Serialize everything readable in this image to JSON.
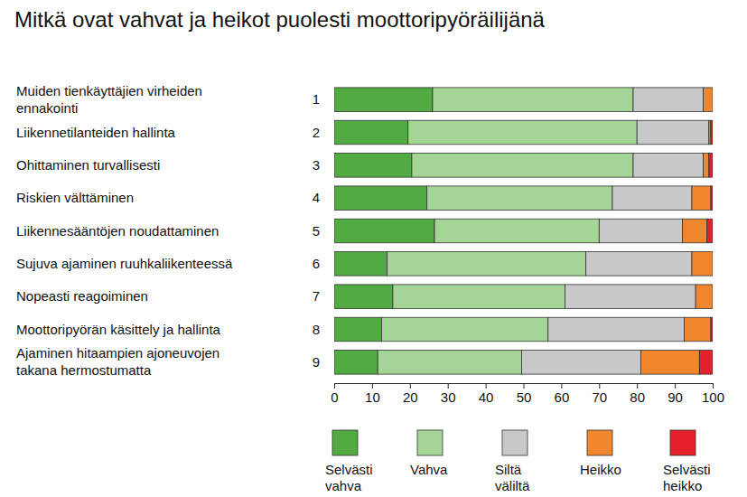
{
  "chart_data": {
    "type": "bar",
    "title": "Mitkä ovat vahvat ja heikot puolesti moottoripyöräilijänä",
    "orientation": "horizontal",
    "stacked": true,
    "grid": false,
    "legend": "bottom",
    "categories": [
      "Muiden tienkäyttäjien virheiden\nennakointi",
      "Liikennetilanteiden hallinta",
      "Ohittaminen turvallisesti",
      "Riskien välttäminen",
      "Liikennesääntöjen noudattaminen",
      "Sujuva ajaminen ruuhkaliikenteessä",
      "Nopeasti reagoiminen",
      "Moottoripyörän käsittely ja hallinta",
      "Ajaminen hitaampien ajoneuvojen\ntakana hermostumatta"
    ],
    "category_numbers": [
      1,
      2,
      3,
      4,
      5,
      6,
      7,
      8,
      9
    ],
    "series": [
      {
        "name": "Selvästi\nvahva",
        "color": "#52ab42",
        "values": [
          26,
          19.5,
          20.5,
          24.5,
          26.5,
          14,
          15.5,
          12.5,
          11.5
        ]
      },
      {
        "name": "Vahva",
        "color": "#a5d497",
        "values": [
          53,
          60.5,
          58.5,
          49,
          43.5,
          52.5,
          45.5,
          44,
          38
        ]
      },
      {
        "name": "Siltä\nväliltä",
        "color": "#c8c8cb",
        "values": [
          18.5,
          19,
          18.5,
          21,
          22,
          28,
          34.5,
          36,
          31.5
        ]
      },
      {
        "name": "Heikko",
        "color": "#f0862d",
        "values": [
          2.5,
          0.5,
          1.5,
          5,
          6.5,
          5.5,
          4.5,
          7,
          15.5
        ]
      },
      {
        "name": "Selvästi\nheikko",
        "color": "#e6202a",
        "values": [
          0,
          0.5,
          1,
          0.5,
          1.5,
          0,
          0,
          0.5,
          3.5
        ]
      }
    ],
    "xlim": [
      0,
      100
    ],
    "xticks": [
      0,
      10,
      20,
      30,
      40,
      50,
      60,
      70,
      80,
      90,
      100
    ]
  }
}
